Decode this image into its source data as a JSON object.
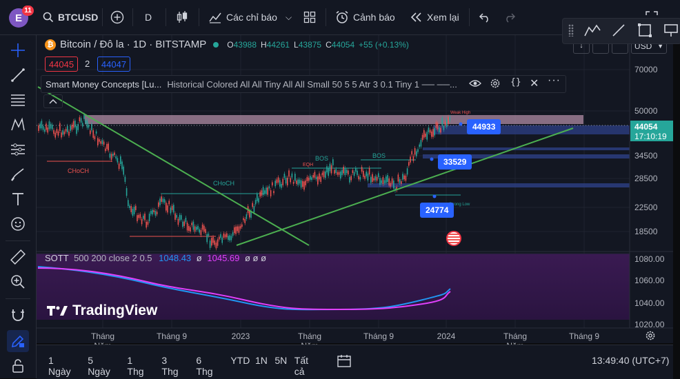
{
  "header": {
    "account_initial": "E",
    "notification_count": "11",
    "symbol": "BTCUSD",
    "interval": "D",
    "indicators_label": "Các chỉ báo",
    "alert_label": "Cảnh báo",
    "replay_label": "Xem lại"
  },
  "legend": {
    "title": "Bitcoin / Đô la · 1D · BITSTAMP",
    "o_label": "O",
    "o": "43988",
    "h_label": "H",
    "h": "44261",
    "l_label": "L",
    "l": "43875",
    "c_label": "C",
    "c": "44054",
    "change": "+55 (+0.13%)",
    "sell": "44045",
    "spread": "2",
    "buy": "44047"
  },
  "indicator_smc": {
    "name": "Smart Money Concepts [Lu...",
    "params": "Historical Colored All All Tiny All All Small 50 5 5 Atr 3 0.1 Tiny 1 ── ──..."
  },
  "indicator_sott": {
    "name": "SOTT",
    "params": "500 200 close 2 0.5",
    "value1": "1048.43",
    "value2": "1045.69",
    "extra": "ø ø ø"
  },
  "currency": "USD",
  "price_axis": [
    "70000",
    "50000",
    "34500",
    "28500",
    "22500",
    "18500"
  ],
  "sott_axis": [
    "1080.00",
    "1060.00",
    "1040.00",
    "1020.00"
  ],
  "time_axis": [
    "Tháng Năm",
    "Tháng 9",
    "2023",
    "Tháng Năm",
    "Tháng 9",
    "2024",
    "Tháng Năm",
    "Tháng 9"
  ],
  "last_price": "44054",
  "countdown": "17:10:19",
  "levels": {
    "l1": "44933",
    "l2": "33529",
    "l3": "24774"
  },
  "chart_labels": {
    "weak_high": "Weak High",
    "strong_low": "Strong Low",
    "choch1": "CHoCH",
    "choch2": "CHoCH",
    "bos1": "BOS",
    "bos2": "BOS",
    "eqh": "EQH"
  },
  "watermark": "TradingView",
  "timeframes": [
    "1 Ngày",
    "5 Ngày",
    "1 Thg",
    "3 Thg",
    "6 Thg",
    "YTD",
    "1N",
    "5N",
    "Tất cả"
  ],
  "clock": "13:49:40 (UTC+7)",
  "colors": {
    "bg": "#131722",
    "up": "#26a69a",
    "down": "#ef5350",
    "accent": "#2962ff",
    "trendline": "#4caf50",
    "sott_a": "#e040fb",
    "sott_b": "#2196f3"
  }
}
